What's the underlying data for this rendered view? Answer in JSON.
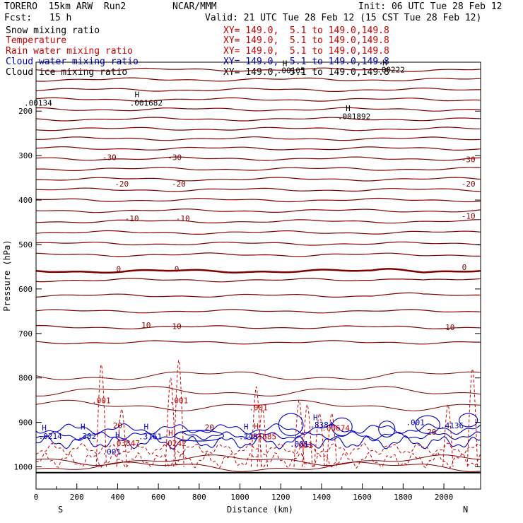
{
  "header": {
    "model": "TORERO  15km ARW  Run2",
    "org": "NCAR/MMM",
    "init": "Init: 06 UTC Tue 28 Feb 12",
    "fcst_label": "Fcst:",
    "fcst_value": "15 h",
    "valid": "Valid: 21 UTC Tue 28 Feb 12 (15 CST Tue 28 Feb 12)"
  },
  "legend": [
    {
      "name": "Snow mixing ratio",
      "color": "#000000",
      "xy": "XY= 149.0,  5.1 to 149.0,149.8"
    },
    {
      "name": "Temperature",
      "color": "#cc0000",
      "xy": "XY= 149.0,  5.1 to 149.0,149.8"
    },
    {
      "name": "Rain water mixing ratio",
      "color": "#cc0000",
      "xy": "XY= 149.0,  5.1 to 149.0,149.8"
    },
    {
      "name": "Cloud water mixing ratio",
      "color": "#0000cc",
      "xy": "XY= 149.0,  5.1 to 149.0,149.8"
    },
    {
      "name": "Cloud ice mixing ratio",
      "color": "#000000",
      "xy": "XY= 149.0,  5.1 to 149.0,149.8"
    }
  ],
  "chart_data": {
    "type": "line",
    "title": "",
    "xlabel": "Distance (km)",
    "ylabel": "Pressure (hPa)",
    "xlim": [
      0,
      2180
    ],
    "ylim": [
      1050,
      90
    ],
    "x_ticks": [
      0,
      200,
      400,
      600,
      800,
      1000,
      1200,
      1400,
      1600,
      1800,
      2000
    ],
    "y_ticks": [
      200,
      300,
      400,
      500,
      600,
      700,
      800,
      900,
      1000
    ],
    "x_end_labels": {
      "left": "S",
      "right": "N"
    },
    "grid": false,
    "temperature_isotherms": {
      "color": "#800000",
      "levels_hpa": [
        107,
        129,
        152,
        174,
        196,
        218,
        240,
        262,
        284,
        307,
        330,
        353,
        377,
        400,
        424,
        448,
        473,
        498,
        523,
        560,
        580,
        615,
        650,
        686,
        720
      ],
      "labels": [
        {
          "text": "-30",
          "x": 360,
          "p": 310
        },
        {
          "text": "-30",
          "x": 680,
          "p": 310
        },
        {
          "text": "-30",
          "x": 2120,
          "p": 315
        },
        {
          "text": "-20",
          "x": 420,
          "p": 370
        },
        {
          "text": "-20",
          "x": 700,
          "p": 370
        },
        {
          "text": "-20",
          "x": 2120,
          "p": 370
        },
        {
          "text": "-10",
          "x": 470,
          "p": 448
        },
        {
          "text": "-10",
          "x": 720,
          "p": 448
        },
        {
          "text": "-10",
          "x": 2120,
          "p": 442
        },
        {
          "text": "0",
          "x": 405,
          "p": 561
        },
        {
          "text": "0",
          "x": 690,
          "p": 561
        },
        {
          "text": "0",
          "x": 2100,
          "p": 557
        },
        {
          "text": "10",
          "x": 540,
          "p": 688
        },
        {
          "text": "10",
          "x": 690,
          "p": 690
        },
        {
          "text": "10",
          "x": 2030,
          "p": 692
        },
        {
          "text": "20",
          "x": 400,
          "p": 913
        },
        {
          "text": "20",
          "x": 850,
          "p": 917
        },
        {
          "text": "20",
          "x": 1940,
          "p": 928
        }
      ]
    },
    "snow_labels": [
      {
        "text": ".00134",
        "x": 10,
        "p": 188
      },
      {
        "text": "H",
        "x": 495,
        "p": 169
      },
      {
        "text": ".001682",
        "x": 540,
        "p": 188
      },
      {
        "text": "H",
        "x": 1220,
        "p": 99
      },
      {
        "text": ".00105",
        "x": 1250,
        "p": 115
      },
      {
        "text": "H",
        "x": 1530,
        "p": 200
      },
      {
        "text": ".001892",
        "x": 1560,
        "p": 218
      },
      {
        "text": "H",
        "x": 1710,
        "p": 97
      },
      {
        "text": ".00222",
        "x": 1740,
        "p": 113
      }
    ],
    "rain_labels": [
      {
        "text": ".001",
        "x": 320,
        "p": 857
      },
      {
        "text": ".001",
        "x": 700,
        "p": 857
      },
      {
        "text": ".001",
        "x": 1090,
        "p": 873
      },
      {
        "text": "H",
        "x": 1080,
        "p": 915
      },
      {
        "text": ".01685",
        "x": 1110,
        "p": 938
      },
      {
        "text": ".03847",
        "x": 440,
        "p": 953
      },
      {
        "text": ".0242",
        "x": 680,
        "p": 953
      },
      {
        "text": "H",
        "x": 660,
        "p": 930
      },
      {
        "text": ".00674",
        "x": 1470,
        "p": 919
      },
      {
        "text": ".001",
        "x": 1310,
        "p": 958
      }
    ],
    "cloud_water_labels": [
      {
        "text": "H",
        "x": 40,
        "p": 918
      },
      {
        "text": ".0214",
        "x": 70,
        "p": 937
      },
      {
        "text": "H",
        "x": 230,
        "p": 916
      },
      {
        "text": ".302",
        "x": 250,
        "p": 937
      },
      {
        "text": "H",
        "x": 400,
        "p": 934
      },
      {
        "text": ".001",
        "x": 370,
        "p": 972
      },
      {
        "text": "H",
        "x": 540,
        "p": 916
      },
      {
        "text": ".3161",
        "x": 560,
        "p": 938
      },
      {
        "text": "H",
        "x": 1030,
        "p": 916
      },
      {
        "text": ".345",
        "x": 1040,
        "p": 938
      },
      {
        "text": "H",
        "x": 1370,
        "p": 895
      },
      {
        "text": ".8384",
        "x": 1400,
        "p": 912
      },
      {
        "text": ".001",
        "x": 1860,
        "p": 906
      },
      {
        "text": ".4136",
        "x": 2040,
        "p": 913
      },
      {
        "text": ".001",
        "x": 1290,
        "p": 955
      }
    ]
  }
}
